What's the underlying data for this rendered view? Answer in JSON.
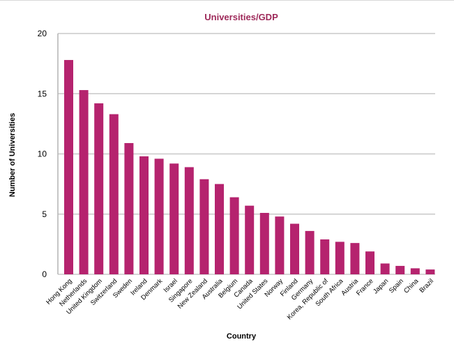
{
  "chart_data": {
    "type": "bar",
    "title": "Universities/GDP",
    "xlabel": "Country",
    "ylabel": "Number of Universities",
    "ylim": [
      0,
      20
    ],
    "yticks": [
      0,
      5,
      10,
      15,
      20
    ],
    "grid": true,
    "colors": {
      "bar": "#B5236E",
      "title": "#9E2A5A",
      "grid": "#C8C8C8",
      "border": "#B4B4B4"
    },
    "categories": [
      "Hong Kong",
      "Netherlands",
      "United Kingdom",
      "Switzerland",
      "Sweden",
      "Ireland",
      "Denmark",
      "Israel",
      "Singapore",
      "New Zealand",
      "Australia",
      "Belgium",
      "Canada",
      "United States",
      "Norway",
      "Finland",
      "Germany",
      "Korea, Republic of",
      "South Africa",
      "Austria",
      "France",
      "Japan",
      "Spain",
      "China",
      "Brazil"
    ],
    "values": [
      17.8,
      15.3,
      14.2,
      13.3,
      10.9,
      9.8,
      9.6,
      9.2,
      8.9,
      7.9,
      7.5,
      6.4,
      5.7,
      5.1,
      4.8,
      4.2,
      3.6,
      2.9,
      2.7,
      2.6,
      1.9,
      0.9,
      0.7,
      0.5,
      0.4
    ]
  }
}
